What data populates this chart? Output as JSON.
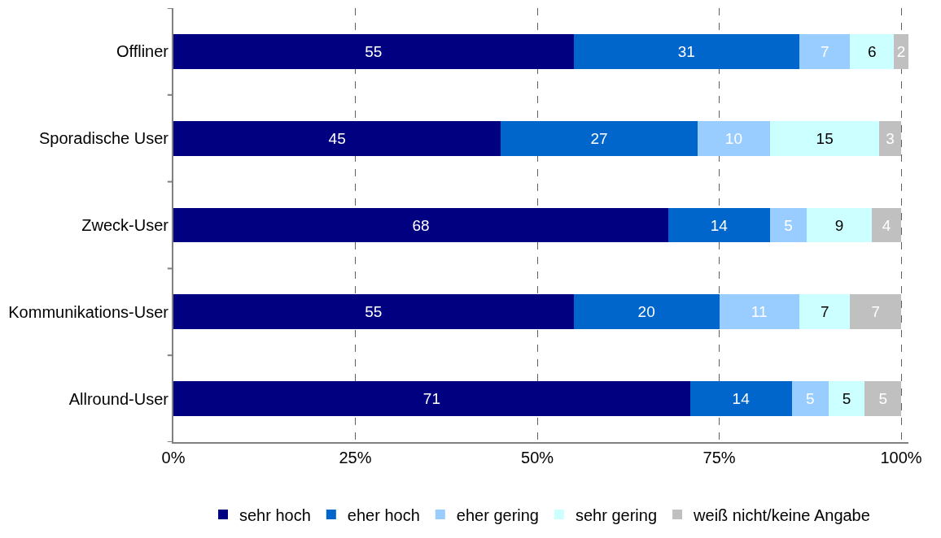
{
  "chart_data": {
    "type": "bar",
    "orientation": "horizontal",
    "stacked": true,
    "data_labels": true,
    "grid": "x",
    "legend": "bottom",
    "categories": [
      "Offliner",
      "Sporadische User",
      "Zweck-User",
      "Kommunikations-User",
      "Allround-User"
    ],
    "series": [
      {
        "name": "sehr hoch",
        "color": "#000080",
        "values": [
          55,
          45,
          68,
          55,
          71
        ]
      },
      {
        "name": "eher hoch",
        "color": "#0066cc",
        "values": [
          31,
          27,
          14,
          20,
          14
        ]
      },
      {
        "name": "eher gering",
        "color": "#99ccff",
        "values": [
          7,
          10,
          5,
          11,
          5
        ]
      },
      {
        "name": "sehr gering",
        "color": "#ccffff",
        "values": [
          6,
          15,
          9,
          7,
          5
        ]
      },
      {
        "name": "weiß nicht/keine Angabe",
        "color": "#c0c0c0",
        "values": [
          2,
          3,
          4,
          7,
          5
        ]
      }
    ],
    "xlim": [
      0,
      101
    ],
    "xticks": [
      {
        "value": 0,
        "label": "0%"
      },
      {
        "value": 25,
        "label": "25%"
      },
      {
        "value": 50,
        "label": "50%"
      },
      {
        "value": 75,
        "label": "75%"
      },
      {
        "value": 100,
        "label": "100%"
      }
    ]
  }
}
